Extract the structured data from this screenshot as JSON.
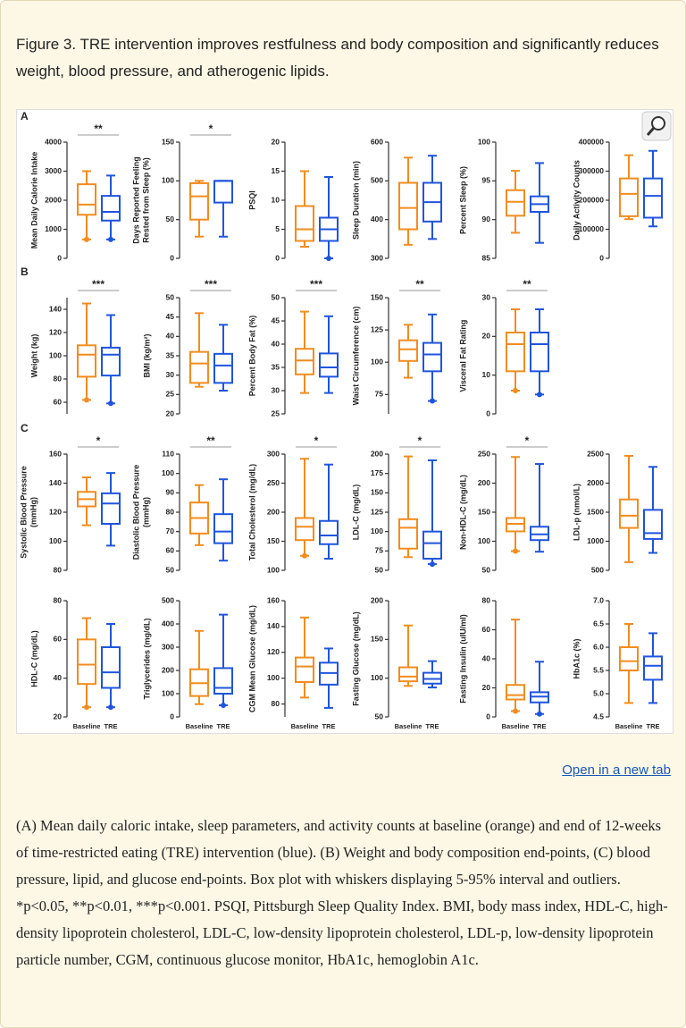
{
  "header": {
    "title": "Figure 3. TRE intervention improves restfulness and body composition and significantly reduces weight, blood pressure, and atherogenic lipids."
  },
  "chart_data": [
    {
      "type": "box",
      "panel": "A",
      "ylabel": "Mean Daily Calorie Intake",
      "annotation": "**",
      "ylim": [
        0,
        4000
      ],
      "yticks": [
        0,
        1000,
        2000,
        3000,
        4000
      ],
      "series": [
        {
          "color": "#f28c1e",
          "values": [
            650,
            1500,
            1850,
            2550,
            3000
          ],
          "outliers": [
            650
          ]
        },
        {
          "color": "#1f55dc",
          "values": [
            650,
            1300,
            1600,
            2150,
            2850
          ],
          "outliers": [
            650
          ]
        }
      ]
    },
    {
      "type": "box",
      "ylabel": [
        "Days Reported Feeling",
        "Rested from Sleep (%)"
      ],
      "annotation": "*",
      "ylim": [
        0,
        150
      ],
      "yticks": [
        0,
        50,
        100,
        150
      ],
      "series": [
        {
          "color": "#f28c1e",
          "values": [
            28,
            50,
            80,
            97,
            100
          ]
        },
        {
          "color": "#1f55dc",
          "values": [
            28,
            72,
            100,
            100,
            100
          ]
        }
      ]
    },
    {
      "type": "box",
      "ylabel": "PSQI",
      "ylim": [
        0,
        20
      ],
      "yticks": [
        0,
        5,
        10,
        15,
        20
      ],
      "series": [
        {
          "color": "#f28c1e",
          "values": [
            2,
            3,
            5,
            9,
            15
          ]
        },
        {
          "color": "#1f55dc",
          "values": [
            0,
            3,
            5,
            7,
            14
          ],
          "outliers": [
            0
          ]
        }
      ]
    },
    {
      "type": "box",
      "ylabel": "Sleep Duration (min)",
      "ylim": [
        300,
        600
      ],
      "yticks": [
        300,
        400,
        500,
        600
      ],
      "series": [
        {
          "color": "#f28c1e",
          "values": [
            335,
            375,
            430,
            495,
            560
          ]
        },
        {
          "color": "#1f55dc",
          "values": [
            350,
            395,
            445,
            495,
            565
          ]
        }
      ]
    },
    {
      "type": "box",
      "ylabel": "Percent Sleep (%)",
      "ylim": [
        85,
        100
      ],
      "yticks": [
        85,
        90,
        95,
        100
      ],
      "series": [
        {
          "color": "#f28c1e",
          "values": [
            88.3,
            90.5,
            92.3,
            93.8,
            96.3
          ]
        },
        {
          "color": "#1f55dc",
          "values": [
            87,
            91,
            92,
            93,
            97.3
          ]
        }
      ]
    },
    {
      "type": "box",
      "ylabel": "Daily Activity Counts",
      "ylim": [
        0,
        400000
      ],
      "yticks": [
        0,
        100000,
        200000,
        300000,
        400000
      ],
      "series": [
        {
          "color": "#f28c1e",
          "values": [
            135000,
            145000,
            222000,
            275000,
            355000
          ]
        },
        {
          "color": "#1f55dc",
          "values": [
            110000,
            140000,
            215000,
            275000,
            370000
          ]
        }
      ]
    },
    {
      "type": "box",
      "panel": "B",
      "ylabel": "Weight (kg)",
      "annotation": "***",
      "ylim": [
        50,
        150
      ],
      "yticks": [
        60,
        80,
        100,
        120,
        140
      ],
      "series": [
        {
          "color": "#f28c1e",
          "values": [
            62,
            82,
            101,
            109,
            145
          ],
          "outliers": [
            62
          ]
        },
        {
          "color": "#1f55dc",
          "values": [
            59,
            83,
            101,
            107,
            135
          ],
          "outliers": [
            59
          ]
        }
      ]
    },
    {
      "type": "box",
      "ylabel": "BMI (kg/m²)",
      "annotation": "***",
      "ylim": [
        20,
        50
      ],
      "yticks": [
        20,
        25,
        30,
        35,
        40,
        45,
        50
      ],
      "series": [
        {
          "color": "#f28c1e",
          "values": [
            27,
            28,
            33,
            36,
            46
          ]
        },
        {
          "color": "#1f55dc",
          "values": [
            26,
            28,
            32.5,
            35.5,
            43
          ]
        }
      ]
    },
    {
      "type": "box",
      "ylabel": "Percent Body Fat (%)",
      "annotation": "***",
      "ylim": [
        25,
        50
      ],
      "yticks": [
        25,
        30,
        35,
        40,
        45,
        50
      ],
      "series": [
        {
          "color": "#f28c1e",
          "values": [
            29.5,
            33.5,
            36.5,
            39,
            47
          ]
        },
        {
          "color": "#1f55dc",
          "values": [
            29.5,
            33,
            35,
            38,
            46
          ]
        }
      ]
    },
    {
      "type": "box",
      "ylabel": "Waist Circumference (cm)",
      "annotation": "**",
      "ylim": [
        60,
        150
      ],
      "yticks": [
        75,
        100,
        125,
        150
      ],
      "series": [
        {
          "color": "#f28c1e",
          "values": [
            88,
            101,
            110,
            117,
            129
          ]
        },
        {
          "color": "#1f55dc",
          "values": [
            70,
            93,
            106,
            115,
            137
          ],
          "outliers": [
            70
          ]
        }
      ]
    },
    {
      "type": "box",
      "ylabel": "Visceral Fat Rating",
      "annotation": "**",
      "ylim": [
        0,
        30
      ],
      "yticks": [
        0,
        10,
        20,
        30
      ],
      "series": [
        {
          "color": "#f28c1e",
          "values": [
            6,
            11,
            18,
            21,
            27
          ],
          "outliers": [
            6
          ]
        },
        {
          "color": "#1f55dc",
          "values": [
            5,
            11,
            18,
            21,
            27
          ],
          "outliers": [
            5
          ]
        }
      ]
    },
    {
      "type": "box",
      "panel": "C",
      "ylabel": [
        "Systolic Blood Pressure",
        "(mmHg)"
      ],
      "annotation": "*",
      "ylim": [
        80,
        160
      ],
      "yticks": [
        80,
        100,
        120,
        140,
        160
      ],
      "series": [
        {
          "color": "#f28c1e",
          "values": [
            111,
            124,
            129,
            134,
            144
          ]
        },
        {
          "color": "#1f55dc",
          "values": [
            97,
            112,
            126,
            133,
            147
          ]
        }
      ]
    },
    {
      "type": "box",
      "ylabel": [
        "Diastolic Blood Pressure",
        "(mmHg)"
      ],
      "annotation": "**",
      "ylim": [
        50,
        110
      ],
      "yticks": [
        50,
        60,
        70,
        80,
        90,
        100,
        110
      ],
      "series": [
        {
          "color": "#f28c1e",
          "values": [
            63,
            69,
            77,
            85,
            94
          ]
        },
        {
          "color": "#1f55dc",
          "values": [
            55,
            64,
            70,
            79,
            97
          ]
        }
      ]
    },
    {
      "type": "box",
      "ylabel": "Total Cholesterol (mg/dL)",
      "annotation": "*",
      "ylim": [
        100,
        300
      ],
      "yticks": [
        100,
        150,
        200,
        250,
        300
      ],
      "series": [
        {
          "color": "#f28c1e",
          "values": [
            125,
            152,
            175,
            190,
            292
          ],
          "outliers": [
            125
          ]
        },
        {
          "color": "#1f55dc",
          "values": [
            120,
            145,
            160,
            185,
            282
          ]
        }
      ]
    },
    {
      "type": "box",
      "ylabel": "LDL-C (mg/dL)",
      "annotation": "*",
      "ylim": [
        50,
        200
      ],
      "yticks": [
        50,
        75,
        100,
        125,
        150,
        175,
        200
      ],
      "series": [
        {
          "color": "#f28c1e",
          "values": [
            67,
            78,
            105,
            116,
            197
          ]
        },
        {
          "color": "#1f55dc",
          "values": [
            58,
            65,
            85,
            100,
            192
          ],
          "outliers": [
            58
          ]
        }
      ]
    },
    {
      "type": "box",
      "ylabel": "Non-HDL-C (mg/dL)",
      "annotation": "*",
      "ylim": [
        50,
        250
      ],
      "yticks": [
        50,
        100,
        150,
        200,
        250
      ],
      "series": [
        {
          "color": "#f28c1e",
          "values": [
            83,
            117,
            130,
            140,
            245
          ],
          "outliers": [
            83
          ]
        },
        {
          "color": "#1f55dc",
          "values": [
            82,
            102,
            112,
            125,
            233
          ]
        }
      ]
    },
    {
      "type": "box",
      "ylabel": "LDL-p (nmol/L)",
      "ylim": [
        500,
        2500
      ],
      "yticks": [
        500,
        1000,
        1500,
        2000,
        2500
      ],
      "series": [
        {
          "color": "#f28c1e",
          "values": [
            640,
            1230,
            1440,
            1720,
            2470
          ]
        },
        {
          "color": "#1f55dc",
          "values": [
            800,
            1040,
            1140,
            1540,
            2280
          ]
        }
      ]
    },
    {
      "type": "box",
      "ylabel": "HDL-C (mg/dL)",
      "categories": [
        "Baseline",
        "TRE"
      ],
      "ylim": [
        20,
        80
      ],
      "yticks": [
        20,
        40,
        60,
        80
      ],
      "series": [
        {
          "color": "#f28c1e",
          "values": [
            25,
            37,
            47,
            60,
            71
          ],
          "outliers": [
            25
          ]
        },
        {
          "color": "#1f55dc",
          "values": [
            25,
            35,
            43,
            56,
            68
          ],
          "outliers": [
            25
          ]
        }
      ]
    },
    {
      "type": "box",
      "ylabel": "Triglycerides (mg/dL)",
      "categories": [
        "Baseline",
        "TRE"
      ],
      "ylim": [
        0,
        500
      ],
      "yticks": [
        0,
        100,
        200,
        300,
        400,
        500
      ],
      "series": [
        {
          "color": "#f28c1e",
          "values": [
            55,
            90,
            145,
            205,
            370
          ]
        },
        {
          "color": "#1f55dc",
          "values": [
            50,
            100,
            125,
            210,
            440
          ],
          "outliers": [
            50
          ]
        }
      ]
    },
    {
      "type": "box",
      "ylabel": "CGM Mean Glucose (mg/dL)",
      "categories": [
        "Baseline",
        "TRE"
      ],
      "ylim": [
        70,
        160
      ],
      "yticks": [
        80,
        100,
        120,
        140,
        160
      ],
      "series": [
        {
          "color": "#f28c1e",
          "values": [
            85,
            97,
            109,
            116,
            147
          ]
        },
        {
          "color": "#1f55dc",
          "values": [
            77,
            95,
            104,
            112,
            123
          ]
        }
      ]
    },
    {
      "type": "box",
      "ylabel": "Fasting Glucose (mg/dL)",
      "categories": [
        "Baseline",
        "TRE"
      ],
      "ylim": [
        50,
        200
      ],
      "yticks": [
        50,
        100,
        150,
        200
      ],
      "series": [
        {
          "color": "#f28c1e",
          "values": [
            90,
            96,
            102,
            114,
            168
          ]
        },
        {
          "color": "#1f55dc",
          "values": [
            88,
            93,
            99,
            107,
            122
          ]
        }
      ]
    },
    {
      "type": "box",
      "ylabel": "Fasting Insulin (uIU/ml)",
      "categories": [
        "Baseline",
        "TRE"
      ],
      "ylim": [
        0,
        80
      ],
      "yticks": [
        0,
        20,
        40,
        60,
        80
      ],
      "series": [
        {
          "color": "#f28c1e",
          "values": [
            4,
            12,
            15,
            22,
            67
          ],
          "outliers": [
            4
          ]
        },
        {
          "color": "#1f55dc",
          "values": [
            2,
            10,
            14,
            17,
            38
          ],
          "outliers": [
            2
          ]
        }
      ]
    },
    {
      "type": "box",
      "ylabel": "HbA1c (%)",
      "categories": [
        "Baseline",
        "TRE"
      ],
      "ylim": [
        4.5,
        7.0
      ],
      "yticks": [
        4.5,
        {
          "value": 5,
          "label": "5.0"
        },
        5.5,
        {
          "value": 6,
          "label": "6.0"
        },
        6.5,
        {
          "value": 7,
          "label": "7.0"
        }
      ],
      "series": [
        {
          "color": "#f28c1e",
          "values": [
            4.8,
            5.5,
            5.7,
            6.0,
            6.5
          ]
        },
        {
          "color": "#1f55dc",
          "values": [
            4.8,
            5.3,
            5.6,
            5.8,
            6.3
          ]
        }
      ]
    }
  ],
  "link": "Open in a new tab",
  "caption": "(A) Mean daily caloric intake, sleep parameters, and activity counts at baseline (orange) and end of 12-weeks of time-restricted eating (TRE) intervention (blue). (B) Weight and body composition end-points, (C) blood pressure, lipid, and glucose end-points. Box plot with whiskers displaying 5-95% interval and outliers. *p<0.05, **p<0.01, ***p<0.001. PSQI, Pittsburgh Sleep Quality Index. BMI, body mass index, HDL-C, high-density lipoprotein cholesterol, LDL-C, low-density lipoprotein cholesterol, LDL-p, low-density lipoprotein particle number, CGM, continuous glucose monitor, HbA1c, hemoglobin A1c."
}
